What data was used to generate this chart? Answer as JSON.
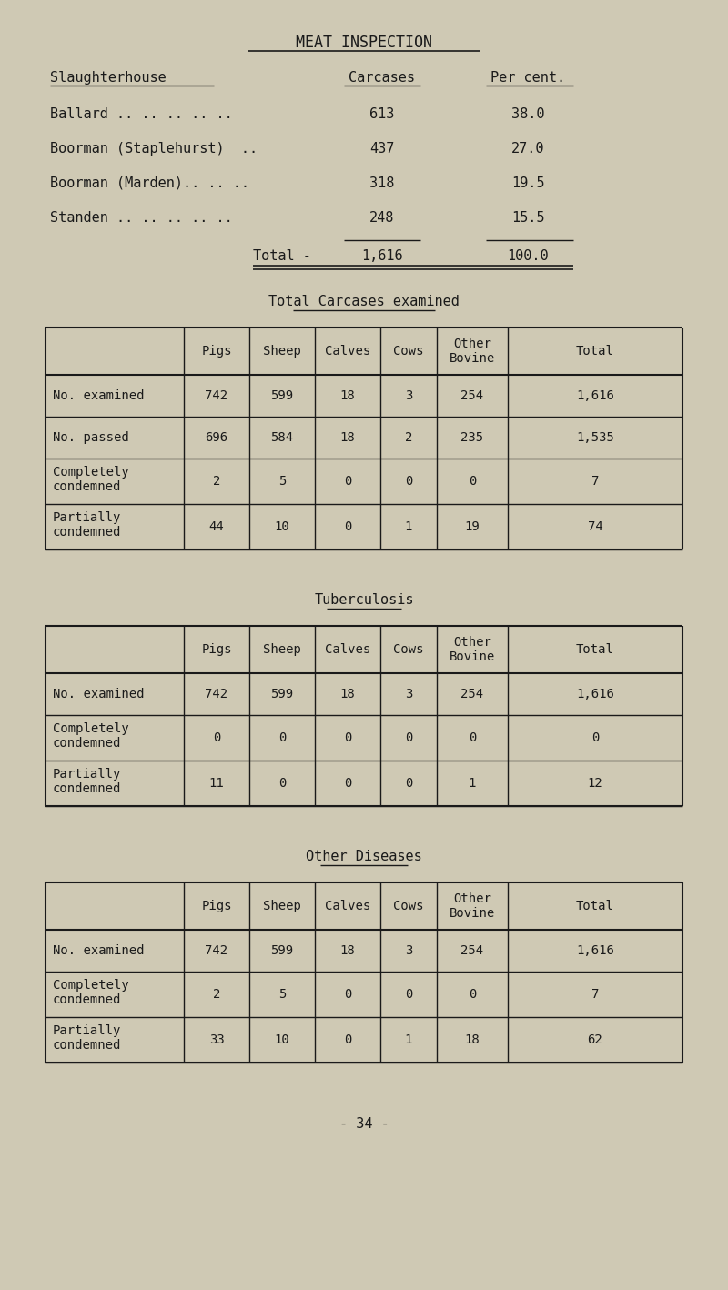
{
  "bg_color": "#cfc9b4",
  "text_color": "#1a1a1a",
  "title": "MEAT INSPECTION",
  "slaughter_rows": [
    [
      "Ballard .. .. .. .. ..",
      "613",
      "38.0"
    ],
    [
      "Boorman (Staplehurst)  ..",
      "437",
      "27.0"
    ],
    [
      "Boorman (Marden).. .. ..",
      "318",
      "19.5"
    ],
    [
      "Standen .. .. .. .. ..",
      "248",
      "15.5"
    ]
  ],
  "slaughter_total": [
    "Total -",
    "1,616",
    "100.0"
  ],
  "table1_title": "Total Carcases examined",
  "table1_cols": [
    "",
    "Pigs",
    "Sheep",
    "Calves",
    "Cows",
    "Other\nBovine",
    "Total"
  ],
  "table1_rows": [
    [
      "No. examined",
      "742",
      "599",
      "18",
      "3",
      "254",
      "1,616"
    ],
    [
      "No. passed",
      "696",
      "584",
      "18",
      "2",
      "235",
      "1,535"
    ],
    [
      "Completely\ncondemned",
      "2",
      "5",
      "0",
      "0",
      "0",
      "7"
    ],
    [
      "Partially\ncondemned",
      "44",
      "10",
      "0",
      "1",
      "19",
      "74"
    ]
  ],
  "table2_title": "Tuberculosis",
  "table2_cols": [
    "",
    "Pigs",
    "Sheep",
    "Calves",
    "Cows",
    "Other\nBovine",
    "Total"
  ],
  "table2_rows": [
    [
      "No. examined",
      "742",
      "599",
      "18",
      "3",
      "254",
      "1,616"
    ],
    [
      "Completely\ncondemned",
      "0",
      "0",
      "0",
      "0",
      "0",
      "0"
    ],
    [
      "Partially\ncondemned",
      "11",
      "0",
      "0",
      "0",
      "1",
      "12"
    ]
  ],
  "table3_title": "Other Diseases",
  "table3_cols": [
    "",
    "Pigs",
    "Sheep",
    "Calves",
    "Cows",
    "Other\nBovine",
    "Total"
  ],
  "table3_rows": [
    [
      "No. examined",
      "742",
      "599",
      "18",
      "3",
      "254",
      "1,616"
    ],
    [
      "Completely\ncondemned",
      "2",
      "5",
      "0",
      "0",
      "0",
      "7"
    ],
    [
      "Partially\ncondemned",
      "33",
      "10",
      "0",
      "1",
      "18",
      "62"
    ]
  ],
  "page_number": "- 34 -"
}
